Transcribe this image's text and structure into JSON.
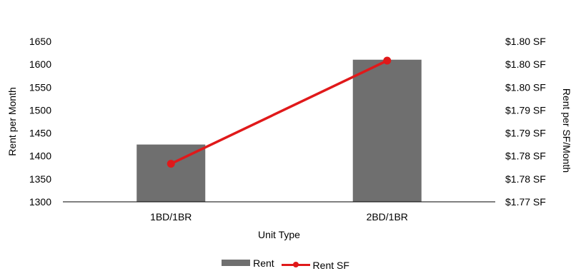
{
  "chart_data": {
    "type": "bar",
    "categories": [
      "1BD/1BR",
      "2BD/1BR"
    ],
    "series": [
      {
        "name": "Rent",
        "type": "bar",
        "axis": "left",
        "color": "#6f6f6f",
        "values": [
          1425,
          1610
        ]
      },
      {
        "name": "Rent SF",
        "type": "line",
        "axis": "right",
        "color": "#e0191a",
        "values": [
          1.7783,
          1.8008
        ]
      }
    ],
    "xlabel": "Unit Type",
    "ylabel": "Rent per Month",
    "y2label": "Rent per SF/Month",
    "ylim": [
      1300,
      1650
    ],
    "yticks": [
      1300,
      1350,
      1400,
      1450,
      1500,
      1550,
      1600,
      1650
    ],
    "y2lim": [
      1.77,
      1.805
    ],
    "y2ticks": [
      1.77,
      1.775,
      1.78,
      1.785,
      1.79,
      1.795,
      1.8,
      1.805
    ],
    "y2tick_labels": [
      "$1.77 SF",
      "$1.78 SF",
      "$1.78 SF",
      "$1.79 SF",
      "$1.79 SF",
      "$1.80 SF",
      "$1.80 SF",
      "$1.80 SF"
    ],
    "grid": false,
    "legend_position": "bottom"
  }
}
